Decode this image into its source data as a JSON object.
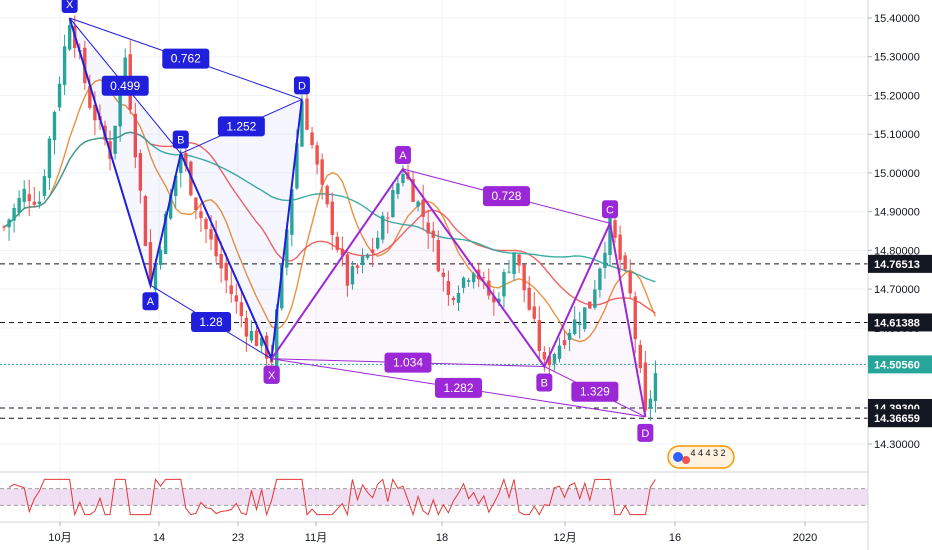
{
  "chart_data": {
    "type": "candlestick",
    "y_axis": {
      "ticks": [
        "15.40000",
        "15.30000",
        "15.20000",
        "15.10000",
        "15.00000",
        "14.90000",
        "14.80000",
        "14.70000",
        "14.60000",
        "14.50000",
        "14.40000",
        "14.30000"
      ],
      "range": [
        14.26,
        15.44
      ]
    },
    "x_axis": {
      "ticks": [
        "10月",
        "14",
        "23",
        "11月",
        "18",
        "12月",
        "16",
        "2020"
      ]
    },
    "price_levels": [
      {
        "value": "14.76513",
        "style": "dashed",
        "color": "#131722"
      },
      {
        "value": "14.61388",
        "style": "dashed",
        "color": "#131722"
      },
      {
        "value": "14.50560",
        "style": "dotted",
        "color": "#26a69a"
      },
      {
        "value": "14.39300",
        "style": "dashed",
        "color": "#131722"
      },
      {
        "value": "14.36659",
        "style": "dashed",
        "color": "#131722"
      }
    ],
    "patterns": [
      {
        "name": "",
        "color": "#1f1fdc",
        "points": [
          {
            "label": "X",
            "t": 13,
            "price": 15.4
          },
          {
            "label": "A",
            "t": 29,
            "price": 14.71
          },
          {
            "label": "B",
            "t": 35,
            "price": 15.05
          },
          {
            "label": "X",
            "t": 53,
            "price": 14.52
          },
          {
            "label": "D",
            "t": 59,
            "price": 15.19
          }
        ],
        "ratios": [
          {
            "label": "0.499",
            "from": 0,
            "to": 2
          },
          {
            "label": "1.252",
            "from": 2,
            "to": 4
          },
          {
            "label": "0.762",
            "from": 0,
            "to": 4
          },
          {
            "label": "1.28",
            "from": 1,
            "to": 3
          }
        ]
      },
      {
        "name": "",
        "color": "#9c27d6",
        "points": [
          {
            "label": "X",
            "t": 53,
            "price": 14.52
          },
          {
            "label": "A",
            "t": 79,
            "price": 15.01
          },
          {
            "label": "B",
            "t": 107,
            "price": 14.5
          },
          {
            "label": "C",
            "t": 120,
            "price": 14.87
          },
          {
            "label": "D",
            "t": 127,
            "price": 14.37
          }
        ],
        "ratios": [
          {
            "label": "0.728",
            "from": 1,
            "to": 3
          },
          {
            "label": "1.034",
            "from": 0,
            "to": 2
          },
          {
            "label": "1.282",
            "from": 0,
            "to": 4
          },
          {
            "label": "1.329",
            "from": 2,
            "to": 4
          }
        ]
      }
    ],
    "moving_averages": [
      {
        "color": "#e8872c",
        "period": 10
      },
      {
        "color": "#ef5350",
        "period": 30
      },
      {
        "color": "#26a69a",
        "period": 60
      }
    ],
    "oscillator": {
      "color": "#e53935",
      "band_color": "#e1bee7",
      "upper": 70,
      "lower": 30
    },
    "badge": {
      "digits": "4 4   4 3  2",
      "colors": [
        "#2962ff",
        "#ef5350",
        "#ff9800"
      ]
    }
  }
}
